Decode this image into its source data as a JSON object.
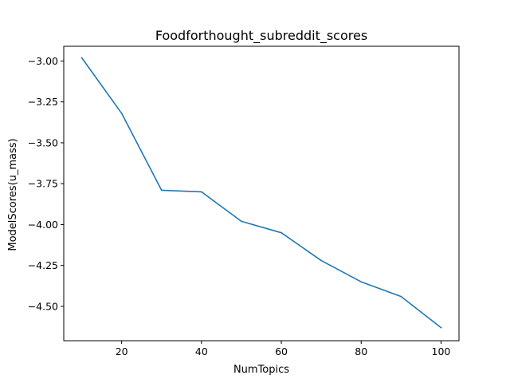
{
  "chart_data": {
    "type": "line",
    "title": "Foodforthought_subreddit_scores",
    "xlabel": "NumTopics",
    "ylabel": "ModelScores(u_mass)",
    "x": [
      10,
      20,
      30,
      40,
      50,
      60,
      70,
      80,
      90,
      100
    ],
    "series": [
      {
        "values": [
          -2.98,
          -3.32,
          -3.79,
          -3.8,
          -3.98,
          -4.05,
          -4.22,
          -4.35,
          -4.44,
          -4.63
        ],
        "color": "#1f77b4"
      }
    ],
    "xlim": [
      5.5,
      104.5
    ],
    "ylim": [
      -4.71,
      -2.91
    ],
    "xticks": [
      20,
      40,
      60,
      80,
      100
    ],
    "xtick_labels": [
      "20",
      "40",
      "60",
      "80",
      "100"
    ],
    "yticks": [
      -3.0,
      -3.25,
      -3.5,
      -3.75,
      -4.0,
      -4.25,
      -4.5
    ],
    "ytick_labels": [
      "−3.00",
      "−3.25",
      "−3.50",
      "−3.75",
      "−4.00",
      "−4.25",
      "−4.50"
    ],
    "grid": false,
    "legend": "none"
  }
}
